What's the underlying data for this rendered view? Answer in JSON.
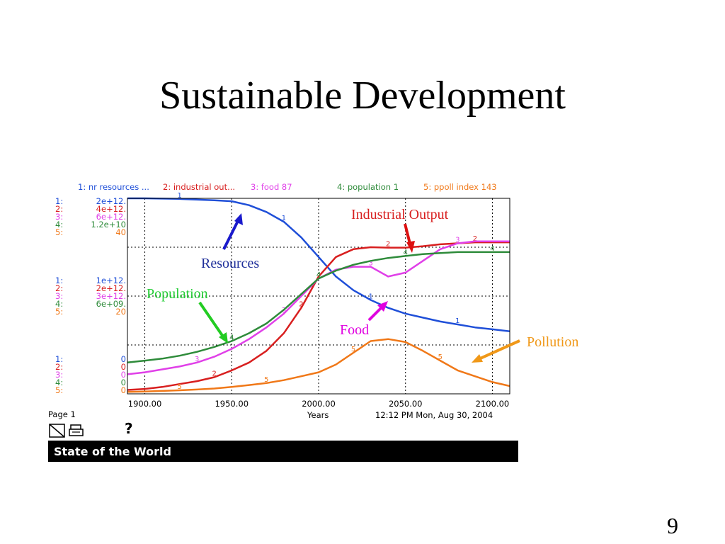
{
  "slide": {
    "title": "Sustainable Development",
    "page_number": "9"
  },
  "legend": [
    {
      "label": "1: nr resources ...",
      "color": "#1f4fd8"
    },
    {
      "label": "2: industrial out...",
      "color": "#d81f1f"
    },
    {
      "label": "3: food 87",
      "color": "#e040e8"
    },
    {
      "label": "4: population 1",
      "color": "#2e8b3a"
    },
    {
      "label": "5: ppoll index 143",
      "color": "#f07818"
    }
  ],
  "scales": {
    "labels": [
      "1:",
      "2:",
      "3:",
      "4:",
      "5:"
    ],
    "top": [
      "2e+12.",
      "4e+12.",
      "6e+12.",
      "1.2e+10",
      "40"
    ],
    "mid": [
      "1e+12.",
      "2e+12.",
      "3e+12.",
      "6e+09.",
      "20"
    ],
    "bottom": [
      "0",
      "0",
      "0",
      "0",
      "0"
    ]
  },
  "chart_data": {
    "type": "line",
    "xlabel": "Years",
    "xlim": [
      1890,
      2110
    ],
    "ylim": [
      0,
      1
    ],
    "x_ticks": [
      "1900.00",
      "1950.00",
      "2000.00",
      "2050.00",
      "2100.00"
    ],
    "x_tick_values": [
      1900,
      1950,
      2000,
      2050,
      2100
    ],
    "grid": true,
    "y_unit_note": "each series scaled to its own axis; values are fraction of the top scale",
    "series": [
      {
        "name": "nr resources ...",
        "number": "1",
        "color": "#1f4fd8",
        "x": [
          1890,
          1900,
          1920,
          1940,
          1950,
          1960,
          1970,
          1980,
          1990,
          2000,
          2010,
          2020,
          2030,
          2040,
          2050,
          2060,
          2070,
          2080,
          2090,
          2100,
          2110
        ],
        "y": [
          1.0,
          1.0,
          0.997,
          0.99,
          0.985,
          0.965,
          0.93,
          0.88,
          0.8,
          0.7,
          0.6,
          0.53,
          0.48,
          0.44,
          0.41,
          0.39,
          0.37,
          0.355,
          0.34,
          0.33,
          0.32
        ]
      },
      {
        "name": "industrial out...",
        "number": "2",
        "color": "#d81f1f",
        "x": [
          1890,
          1900,
          1910,
          1920,
          1930,
          1940,
          1950,
          1960,
          1970,
          1980,
          1990,
          2000,
          2010,
          2020,
          2030,
          2040,
          2050,
          2060,
          2070,
          2080,
          2090,
          2100,
          2110
        ],
        "y": [
          0.02,
          0.025,
          0.035,
          0.05,
          0.065,
          0.085,
          0.12,
          0.16,
          0.22,
          0.31,
          0.44,
          0.6,
          0.7,
          0.74,
          0.75,
          0.748,
          0.748,
          0.755,
          0.765,
          0.77,
          0.775,
          0.775,
          0.775
        ]
      },
      {
        "name": "food 87",
        "number": "3",
        "color": "#e040e8",
        "x": [
          1890,
          1900,
          1910,
          1920,
          1930,
          1940,
          1950,
          1960,
          1970,
          1980,
          1990,
          2000,
          2010,
          2020,
          2030,
          2040,
          2050,
          2060,
          2070,
          2080,
          2090,
          2100,
          2110
        ],
        "y": [
          0.1,
          0.11,
          0.125,
          0.14,
          0.16,
          0.19,
          0.23,
          0.28,
          0.34,
          0.41,
          0.5,
          0.59,
          0.635,
          0.65,
          0.65,
          0.6,
          0.62,
          0.68,
          0.74,
          0.77,
          0.78,
          0.78,
          0.78
        ]
      },
      {
        "name": "population 1",
        "number": "4",
        "color": "#2e8b3a",
        "x": [
          1890,
          1900,
          1910,
          1920,
          1930,
          1940,
          1950,
          1960,
          1970,
          1980,
          1990,
          2000,
          2010,
          2020,
          2030,
          2040,
          2050,
          2060,
          2070,
          2080,
          2090,
          2100,
          2110
        ],
        "y": [
          0.16,
          0.17,
          0.18,
          0.195,
          0.215,
          0.24,
          0.27,
          0.31,
          0.36,
          0.43,
          0.51,
          0.59,
          0.63,
          0.66,
          0.68,
          0.695,
          0.705,
          0.715,
          0.72,
          0.725,
          0.725,
          0.725,
          0.725
        ]
      },
      {
        "name": "ppoll index 143",
        "number": "5",
        "color": "#f07818",
        "x": [
          1890,
          1900,
          1910,
          1920,
          1930,
          1940,
          1950,
          1960,
          1970,
          1980,
          1990,
          2000,
          2010,
          2020,
          2030,
          2040,
          2050,
          2060,
          2070,
          2080,
          2090,
          2100,
          2110
        ],
        "y": [
          0.01,
          0.012,
          0.015,
          0.018,
          0.022,
          0.027,
          0.035,
          0.045,
          0.055,
          0.07,
          0.09,
          0.11,
          0.15,
          0.21,
          0.27,
          0.28,
          0.265,
          0.22,
          0.17,
          0.12,
          0.09,
          0.06,
          0.04
        ]
      }
    ]
  },
  "footer": {
    "page_label": "Page 1",
    "years_label": "Years",
    "timestamp": "12:12 PM   Mon, Aug 30, 2004",
    "help_glyph": "?",
    "window_title": "State of the World"
  },
  "annotations": {
    "resources": {
      "text": "Resources",
      "color": "#1f2f9a"
    },
    "industrial": {
      "text": "Industrial Output",
      "color": "#d81f1f"
    },
    "population": {
      "text": "Population",
      "color": "#22cc33"
    },
    "food": {
      "text": "Food",
      "color": "#e000e0"
    },
    "pollution": {
      "text": "Pollution",
      "color": "#f09818"
    }
  }
}
